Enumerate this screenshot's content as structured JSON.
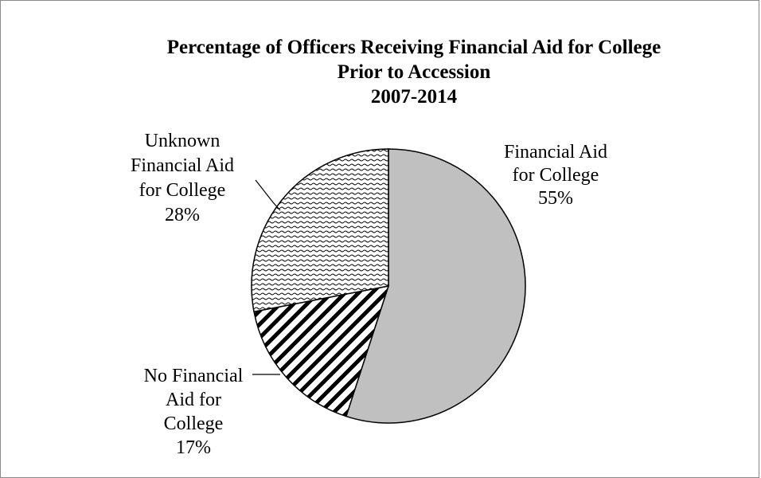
{
  "chart_data": {
    "type": "pie",
    "title_lines": [
      "Percentage of Officers Receiving Financial Aid for College",
      "Prior to Accession",
      "2007-2014"
    ],
    "categories": [
      "Financial Aid for College",
      "No Financial Aid for College",
      "Unknown Financial Aid for College"
    ],
    "values": [
      55,
      17,
      28
    ],
    "percent_labels": [
      "55%",
      "17%",
      "28%"
    ],
    "label_lines": [
      [
        "Financial Aid",
        "for College",
        "55%"
      ],
      [
        "No Financial",
        "Aid for",
        "College",
        "17%"
      ],
      [
        "Unknown",
        "Financial Aid",
        "for College",
        "28%"
      ]
    ],
    "fills": [
      "solid light gray",
      "diagonal stripes",
      "dotted wave pattern"
    ],
    "colors": {
      "solid": "#c0c0c0",
      "outline": "#000000",
      "background": "#ffffff"
    },
    "legend": "none (data labels on slices)"
  }
}
